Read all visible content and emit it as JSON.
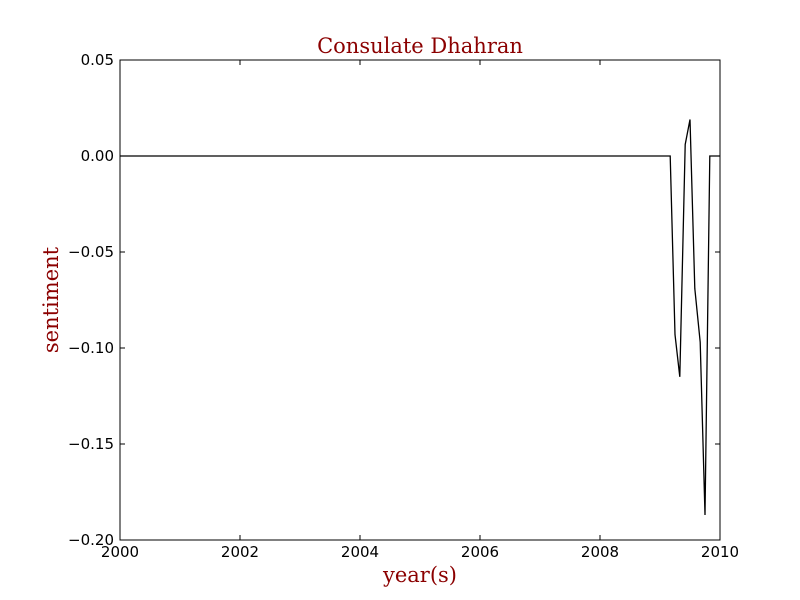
{
  "colors": {
    "label": "#8b0000",
    "line": "#000000"
  },
  "chart_data": {
    "type": "line",
    "title": "Consulate Dhahran",
    "xlabel": "year(s)",
    "ylabel": "sentiment",
    "xlim": [
      2000,
      2010
    ],
    "ylim": [
      -0.2,
      0.05
    ],
    "grid": false,
    "legend": "none",
    "x_ticks": [
      2000,
      2002,
      2004,
      2006,
      2008,
      2010
    ],
    "x_tick_labels": [
      "2000",
      "2002",
      "2004",
      "2006",
      "2008",
      "2010"
    ],
    "y_ticks": [
      0.05,
      0.0,
      -0.05,
      -0.1,
      -0.15,
      -0.2
    ],
    "y_tick_labels": [
      "0.05",
      "0.00",
      "−0.05",
      "−0.10",
      "−0.15",
      "−0.20"
    ],
    "series": [
      {
        "x": [
          2000.0,
          2009.17,
          2009.25,
          2009.33,
          2009.42,
          2009.5,
          2009.58,
          2009.67,
          2009.75,
          2009.83,
          2009.92,
          2010.0
        ],
        "y": [
          0.0,
          0.0,
          -0.093,
          -0.115,
          0.006,
          0.019,
          -0.069,
          -0.097,
          -0.187,
          0.0,
          0.0,
          0.0
        ]
      }
    ]
  }
}
